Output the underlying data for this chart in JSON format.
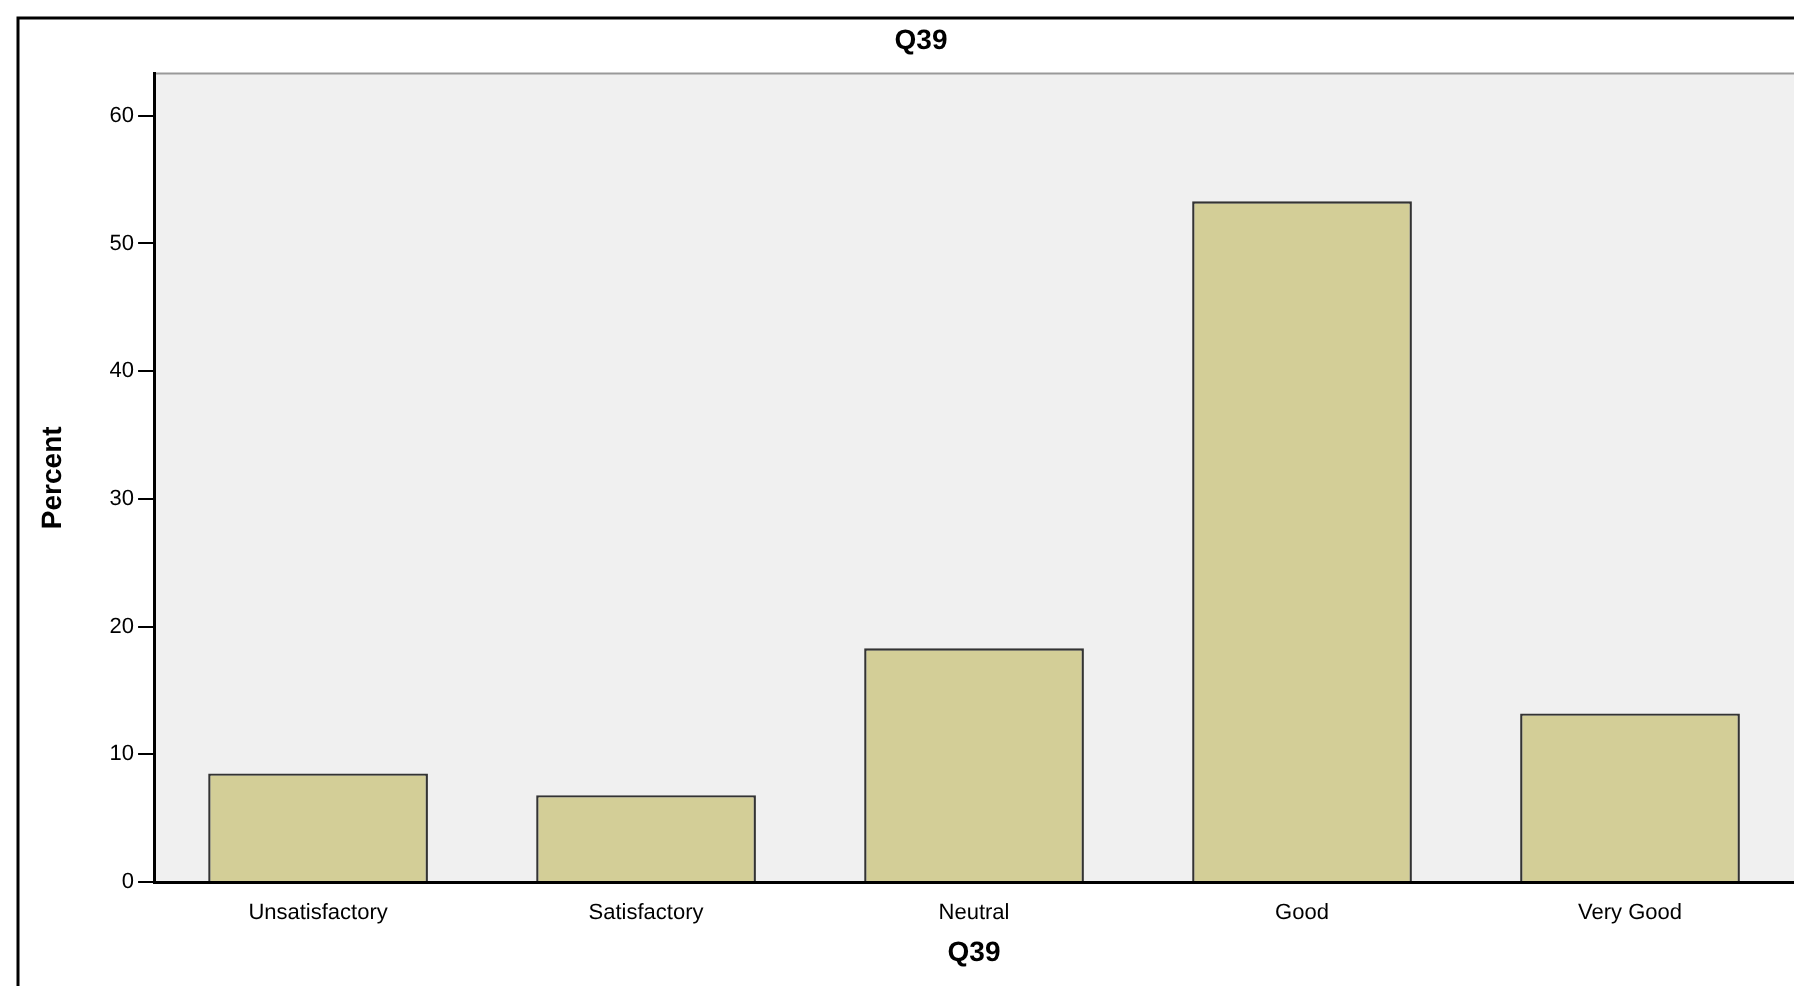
{
  "chart_data": {
    "type": "bar",
    "title": "Q39",
    "xlabel": "Q39",
    "ylabel": "Percent",
    "categories": [
      "Unsatisfactory",
      "Satisfactory",
      "Neutral",
      "Good",
      "Very Good"
    ],
    "values": [
      8.5,
      6.8,
      18.3,
      53.3,
      13.2
    ],
    "color": "#d3ce97",
    "ylim": [
      0,
      63.3
    ],
    "yticks": [
      0,
      10,
      20,
      30,
      40,
      50,
      60
    ],
    "grid": false,
    "legend": false
  }
}
